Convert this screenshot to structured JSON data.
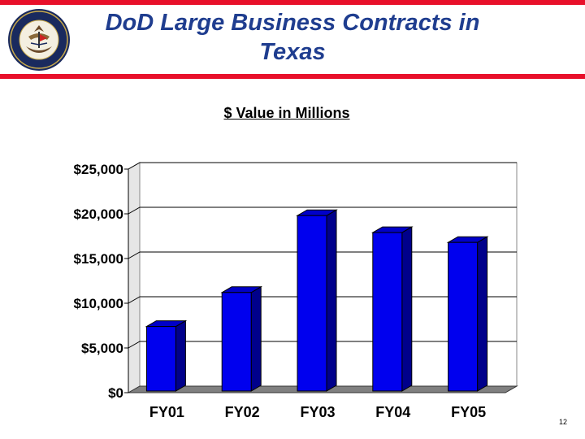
{
  "header": {
    "title": "DoD Large Business Contracts in Texas",
    "seal_text": "DEPARTMENT OF THE NAVY · UNITED STATES OF AMERICA",
    "accent_color": "#e8102a",
    "title_color": "#1f3d8f"
  },
  "chart_data": {
    "type": "bar",
    "title": "$ Value in Millions",
    "categories": [
      "FY01",
      "FY02",
      "FY03",
      "FY04",
      "FY05"
    ],
    "values": [
      7400,
      11200,
      19800,
      17900,
      16800
    ],
    "ylim": [
      0,
      25000
    ],
    "yticks": [
      0,
      5000,
      10000,
      15000,
      20000,
      25000
    ],
    "ytick_labels": [
      "$0",
      "$5,000",
      "$10,000",
      "$15,000",
      "$20,000",
      "$25,000"
    ],
    "xlabel": "",
    "ylabel": "",
    "grid": true,
    "bar_color": "#0000ee"
  },
  "footer": {
    "page_number": "12"
  }
}
